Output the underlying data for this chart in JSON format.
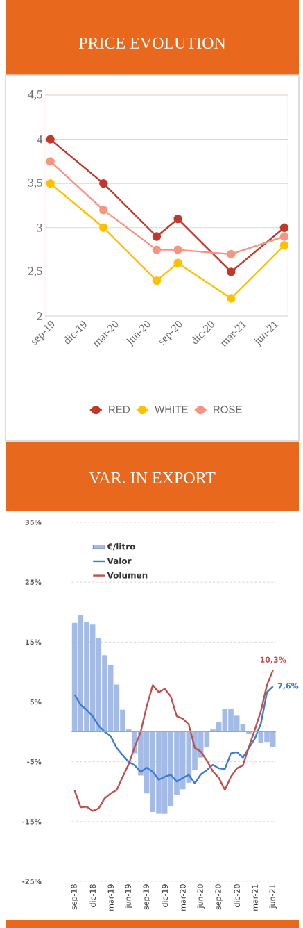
{
  "chart_data": [
    {
      "type": "line",
      "title": "PRICE EVOLUTION",
      "x": [
        "2019-09",
        "2020-02",
        "2020-07",
        "2020-09",
        "2021-02",
        "2021-07"
      ],
      "xlim": [
        "2019-08-16",
        "2021-07-11"
      ],
      "xticks": [
        {
          "value": "2019-09",
          "label": "sep-19"
        },
        {
          "value": "2019-12",
          "label": "dic-19"
        },
        {
          "value": "2020-03",
          "label": "mar-20"
        },
        {
          "value": "2020-06",
          "label": "jun-20"
        },
        {
          "value": "2020-09",
          "label": "sep-20"
        },
        {
          "value": "2020-12",
          "label": "dic-20"
        },
        {
          "value": "2021-03",
          "label": "mar-21"
        },
        {
          "value": "2021-06",
          "label": "jun-21"
        }
      ],
      "ylim": [
        2,
        4.5
      ],
      "yticks": [
        2,
        {
          "value": 2.5,
          "label": "2,5"
        },
        3,
        {
          "value": 3.5,
          "label": "3,5"
        },
        4,
        {
          "value": 4.5,
          "label": "4,5"
        }
      ],
      "series": [
        {
          "name": "RED",
          "color": "#c0392b",
          "values": [
            4,
            3.5,
            2.9,
            3.1,
            2.5,
            3
          ]
        },
        {
          "name": "WHITE",
          "color": "#ffc000",
          "values": [
            3.5,
            3,
            2.4,
            2.6,
            2.2,
            2.8
          ]
        },
        {
          "name": "ROSE",
          "color": "#f79580",
          "values": [
            3.75,
            3.2,
            2.75,
            2.75,
            2.7,
            2.9
          ]
        }
      ],
      "marker": "circle",
      "line_style": "solid",
      "grid": "y",
      "legend": "bottom"
    },
    {
      "type": "line",
      "title": "VAR. IN EXPORT",
      "categories": [
        "sep-18",
        null,
        null,
        "dic-18",
        null,
        null,
        "mar-19",
        null,
        null,
        "jun-19",
        null,
        null,
        "sep-19",
        null,
        null,
        "dic-19",
        null,
        null,
        "mar-20",
        null,
        null,
        "jun-20",
        null,
        null,
        "sep-20",
        null,
        null,
        "dic-20",
        null,
        null,
        "mar-21",
        null,
        null,
        "jun-21"
      ],
      "ylim": [
        -25,
        35
      ],
      "yticks": [
        {
          "value": -25,
          "label": "-25%"
        },
        {
          "value": -15,
          "label": "-15%"
        },
        {
          "value": -5,
          "label": "-5%"
        },
        {
          "value": 5,
          "label": "5%"
        },
        {
          "value": 15,
          "label": "15%"
        },
        {
          "value": 25,
          "label": "25%"
        },
        {
          "value": 35,
          "label": "35%"
        }
      ],
      "series": [
        {
          "name": "€/litro",
          "type": "bar",
          "color": "#a3bbe6",
          "values": [
            18.2,
            19.5,
            18.4,
            17.9,
            15.7,
            12.8,
            11.1,
            7.9,
            3.7,
            0.4,
            -3.6,
            -7.3,
            -10.3,
            -13.4,
            -13.7,
            -13.7,
            -12.4,
            -10.6,
            -9.6,
            -8.5,
            -6.4,
            -4.3,
            -2.6,
            0.4,
            1.7,
            3.9,
            3.8,
            2.7,
            1.3,
            -0.3,
            null,
            -1.9,
            -1.7,
            -2.6
          ]
        },
        {
          "name": "Valor",
          "color": "#3d7cc9",
          "values": [
            6.2,
            4.5,
            3.7,
            2.6,
            1.0,
            0,
            -0.7,
            -2.7,
            -3.9,
            -5,
            -5.6,
            -6.7,
            -6,
            -6.7,
            -8,
            -7.5,
            -7.2,
            -8.3,
            -7.7,
            -7.2,
            -8.6,
            -7.1,
            -6.4,
            -5.5,
            -6.1,
            -6.2,
            -3.6,
            -3.4,
            -4.3,
            -2.7,
            -1.1,
            1.4,
            6.6,
            7.6
          ]
        },
        {
          "name": "Volumen",
          "color": "#c0504d",
          "values": [
            -9.8,
            -12.6,
            -12.5,
            -13.2,
            -12.8,
            -11.1,
            -10.3,
            -9.7,
            -7.5,
            -5.4,
            -2.5,
            0,
            4.3,
            7.8,
            6.6,
            7.2,
            5.9,
            2.6,
            2.2,
            1.2,
            -2.7,
            -3.3,
            -4.8,
            -6.6,
            -7.7,
            -9.7,
            -7.5,
            -6.1,
            -5.6,
            -2.5,
            0.4,
            3.5,
            7.8,
            10.3
          ]
        }
      ],
      "grid": "y",
      "legend": "top left",
      "annotations": [
        {
          "text": "10,3%",
          "x": "jun-21",
          "y": 10.3
        },
        {
          "text": "7,6%",
          "x": "jun-21",
          "y": 7.6
        }
      ]
    }
  ]
}
